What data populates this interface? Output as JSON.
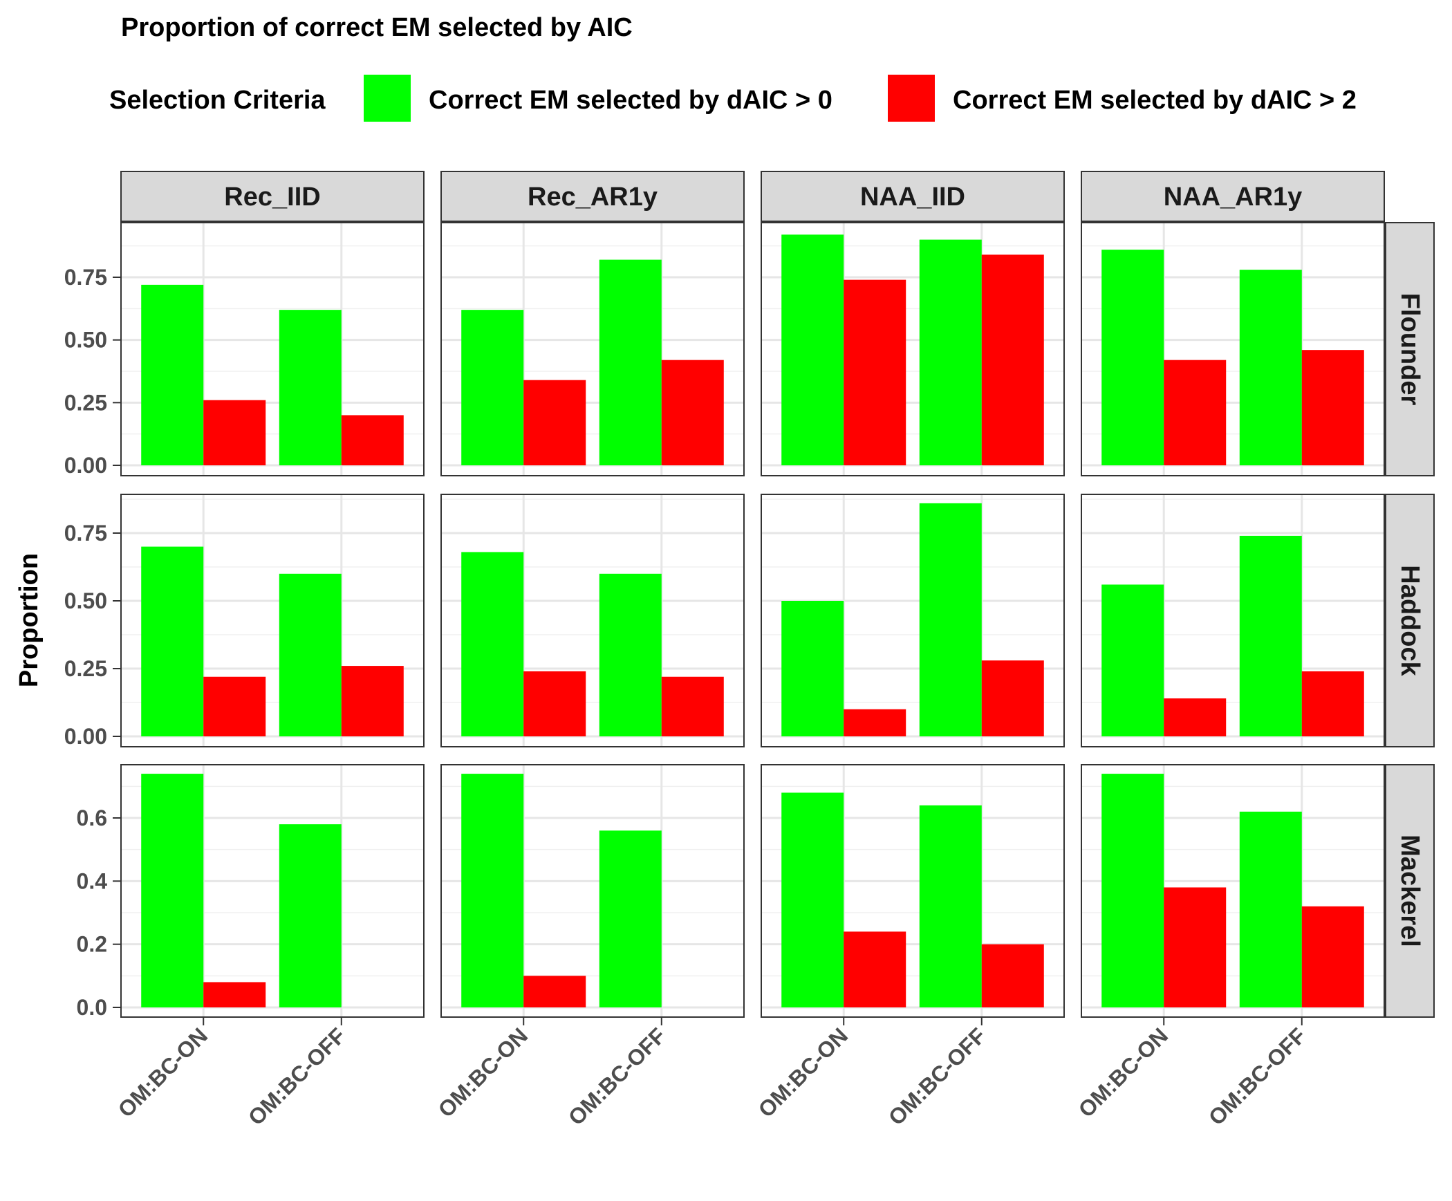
{
  "chart_data": {
    "type": "bar",
    "title": "Proportion of correct EM selected by AIC",
    "ylabel": "Proportion",
    "xlabel": "",
    "legend": {
      "title": "Selection Criteria",
      "placement": "top",
      "entries": [
        {
          "name": "Correct EM selected by dAIC > 0",
          "color": "#00FF00"
        },
        {
          "name": "Correct EM selected by dAIC > 2",
          "color": "#FF0000"
        }
      ]
    },
    "grid": true,
    "categories": [
      "OM:BC-ON",
      "OM:BC-OFF"
    ],
    "columns": [
      "Rec_IID",
      "Rec_AR1y",
      "NAA_IID",
      "NAA_AR1y"
    ],
    "rows": [
      {
        "name": "Flounder",
        "ylim": [
          0,
          0.95
        ],
        "ticks": [
          "0.00",
          "0.25",
          "0.50",
          "0.75"
        ],
        "tick_values": [
          0,
          0.25,
          0.5,
          0.75
        ]
      },
      {
        "name": "Haddock",
        "ylim": [
          0,
          0.95
        ],
        "ticks": [
          "0.00",
          "0.25",
          "0.50",
          "0.75"
        ],
        "tick_values": [
          0,
          0.25,
          0.5,
          0.75
        ]
      },
      {
        "name": "Mackerel",
        "ylim": [
          0,
          0.77
        ],
        "ticks": [
          "0.0",
          "0.2",
          "0.4",
          "0.6"
        ],
        "tick_values": [
          0,
          0.2,
          0.4,
          0.6
        ]
      }
    ],
    "panels": [
      {
        "row": "Flounder",
        "col": "Rec_IID",
        "series": [
          {
            "name": "Correct EM selected by dAIC > 0",
            "values": [
              0.72,
              0.62
            ]
          },
          {
            "name": "Correct EM selected by dAIC > 2",
            "values": [
              0.26,
              0.2
            ]
          }
        ]
      },
      {
        "row": "Flounder",
        "col": "Rec_AR1y",
        "series": [
          {
            "name": "Correct EM selected by dAIC > 0",
            "values": [
              0.62,
              0.82
            ]
          },
          {
            "name": "Correct EM selected by dAIC > 2",
            "values": [
              0.34,
              0.42
            ]
          }
        ]
      },
      {
        "row": "Flounder",
        "col": "NAA_IID",
        "series": [
          {
            "name": "Correct EM selected by dAIC > 0",
            "values": [
              0.92,
              0.9
            ]
          },
          {
            "name": "Correct EM selected by dAIC > 2",
            "values": [
              0.74,
              0.84
            ]
          }
        ]
      },
      {
        "row": "Flounder",
        "col": "NAA_AR1y",
        "series": [
          {
            "name": "Correct EM selected by dAIC > 0",
            "values": [
              0.86,
              0.78
            ]
          },
          {
            "name": "Correct EM selected by dAIC > 2",
            "values": [
              0.42,
              0.46
            ]
          }
        ]
      },
      {
        "row": "Haddock",
        "col": "Rec_IID",
        "series": [
          {
            "name": "Correct EM selected by dAIC > 0",
            "values": [
              0.7,
              0.6
            ]
          },
          {
            "name": "Correct EM selected by dAIC > 2",
            "values": [
              0.22,
              0.26
            ]
          }
        ]
      },
      {
        "row": "Haddock",
        "col": "Rec_AR1y",
        "series": [
          {
            "name": "Correct EM selected by dAIC > 0",
            "values": [
              0.68,
              0.6
            ]
          },
          {
            "name": "Correct EM selected by dAIC > 2",
            "values": [
              0.24,
              0.22
            ]
          }
        ]
      },
      {
        "row": "Haddock",
        "col": "NAA_IID",
        "series": [
          {
            "name": "Correct EM selected by dAIC > 0",
            "values": [
              0.5,
              0.86
            ]
          },
          {
            "name": "Correct EM selected by dAIC > 2",
            "values": [
              0.1,
              0.28
            ]
          }
        ]
      },
      {
        "row": "Haddock",
        "col": "NAA_AR1y",
        "series": [
          {
            "name": "Correct EM selected by dAIC > 0",
            "values": [
              0.56,
              0.74
            ]
          },
          {
            "name": "Correct EM selected by dAIC > 2",
            "values": [
              0.14,
              0.24
            ]
          }
        ]
      },
      {
        "row": "Mackerel",
        "col": "Rec_IID",
        "series": [
          {
            "name": "Correct EM selected by dAIC > 0",
            "values": [
              0.74,
              0.58
            ]
          },
          {
            "name": "Correct EM selected by dAIC > 2",
            "values": [
              0.08,
              0.0
            ]
          }
        ]
      },
      {
        "row": "Mackerel",
        "col": "Rec_AR1y",
        "series": [
          {
            "name": "Correct EM selected by dAIC > 0",
            "values": [
              0.74,
              0.56
            ]
          },
          {
            "name": "Correct EM selected by dAIC > 2",
            "values": [
              0.1,
              0.0
            ]
          }
        ]
      },
      {
        "row": "Mackerel",
        "col": "NAA_IID",
        "series": [
          {
            "name": "Correct EM selected by dAIC > 0",
            "values": [
              0.68,
              0.64
            ]
          },
          {
            "name": "Correct EM selected by dAIC > 2",
            "values": [
              0.24,
              0.2
            ]
          }
        ]
      },
      {
        "row": "Mackerel",
        "col": "NAA_AR1y",
        "series": [
          {
            "name": "Correct EM selected by dAIC > 0",
            "values": [
              0.74,
              0.62
            ]
          },
          {
            "name": "Correct EM selected by dAIC > 2",
            "values": [
              0.38,
              0.32
            ]
          }
        ]
      }
    ]
  }
}
